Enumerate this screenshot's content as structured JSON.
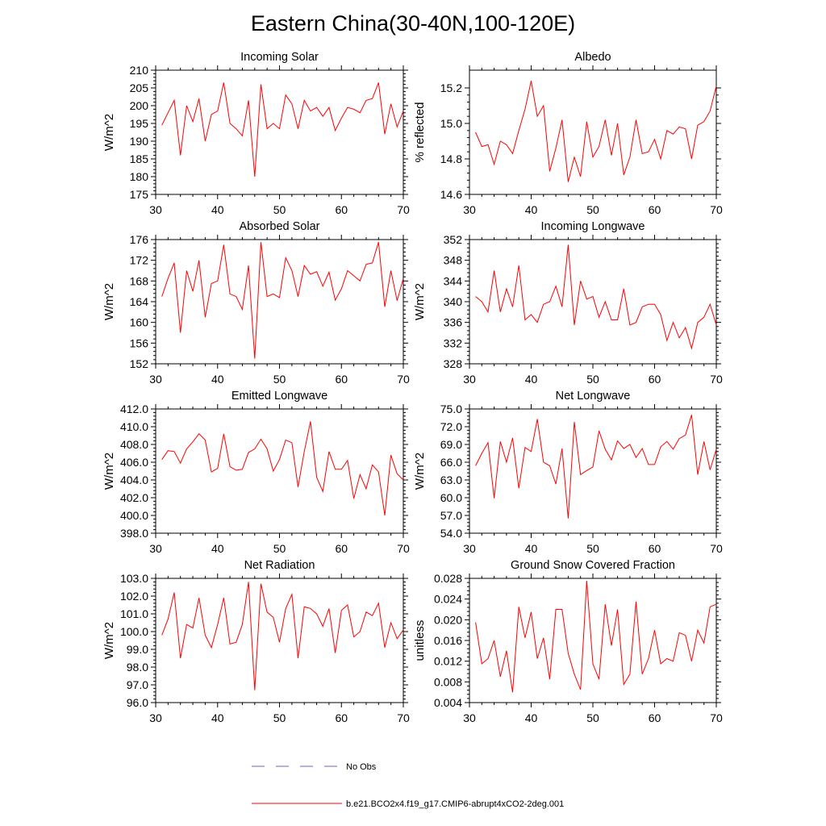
{
  "title": "Eastern China(30-40N,100-120E)",
  "colors": {
    "model": "#ff0000",
    "obs": "#6666cc"
  },
  "legend": {
    "obs_label": "No Obs",
    "model_label": "b.e21.BCO2x4.f19_g17.CMIP6-abrupt4xCO2-2deg.001"
  },
  "chart_data": [
    {
      "type": "line",
      "title": "Incoming Solar",
      "ylabel": "W/m^2",
      "xlim": [
        30,
        70
      ],
      "ylim": [
        175,
        210
      ],
      "xticks": [
        30,
        40,
        50,
        60,
        70
      ],
      "xtick_labels": [
        "30",
        "40",
        "50",
        "60",
        "70"
      ],
      "yticks": [
        175,
        180,
        185,
        190,
        195,
        200,
        205,
        210
      ],
      "ytick_labels": [
        "175",
        "180",
        "185",
        "190",
        "195",
        "200",
        "205",
        "210"
      ],
      "x": [
        31,
        32,
        33,
        34,
        35,
        36,
        37,
        38,
        39,
        40,
        41,
        42,
        43,
        44,
        45,
        46,
        47,
        48,
        49,
        50,
        51,
        52,
        53,
        54,
        55,
        56,
        57,
        58,
        59,
        60,
        61,
        62,
        63,
        64,
        65,
        66,
        67,
        68,
        69,
        70
      ],
      "series": [
        {
          "name": "b.e21.BCO2x4.f19_g17.CMIP6-abrupt4xCO2-2deg.001",
          "values": [
            194.5,
            198.0,
            201.5,
            186.0,
            200.0,
            195.5,
            202.0,
            190.0,
            197.5,
            198.5,
            206.5,
            195.0,
            193.5,
            191.5,
            201.5,
            180.0,
            206.0,
            193.5,
            195.0,
            193.5,
            203.0,
            200.5,
            193.5,
            201.5,
            198.5,
            199.5,
            197.0,
            199.5,
            193.0,
            196.5,
            199.5,
            199.0,
            198.0,
            201.5,
            202.0,
            206.5,
            192.0,
            200.5,
            194.0,
            198.5
          ]
        }
      ]
    },
    {
      "type": "line",
      "title": "Albedo",
      "ylabel": "% reflected",
      "xlim": [
        30,
        70
      ],
      "ylim": [
        14.6,
        15.3
      ],
      "xticks": [
        30,
        40,
        50,
        60,
        70
      ],
      "xtick_labels": [
        "30",
        "40",
        "50",
        "60",
        "70"
      ],
      "yticks": [
        14.6,
        14.8,
        15.0,
        15.2
      ],
      "ytick_labels": [
        "14.6",
        "14.8",
        "15.0",
        "15.2"
      ],
      "x": [
        31,
        32,
        33,
        34,
        35,
        36,
        37,
        38,
        39,
        40,
        41,
        42,
        43,
        44,
        45,
        46,
        47,
        48,
        49,
        50,
        51,
        52,
        53,
        54,
        55,
        56,
        57,
        58,
        59,
        60,
        61,
        62,
        63,
        64,
        65,
        66,
        67,
        68,
        69,
        70
      ],
      "series": [
        {
          "name": "b.e21.BCO2x4.f19_g17.CMIP6-abrupt4xCO2-2deg.001",
          "values": [
            14.95,
            14.87,
            14.88,
            14.77,
            14.9,
            14.88,
            14.83,
            14.96,
            15.08,
            15.24,
            15.04,
            15.1,
            14.73,
            14.86,
            15.02,
            14.67,
            14.81,
            14.7,
            15.01,
            14.81,
            14.87,
            15.02,
            14.82,
            15.0,
            14.71,
            14.81,
            15.02,
            14.83,
            14.84,
            14.91,
            14.8,
            14.96,
            14.94,
            14.98,
            14.97,
            14.8,
            14.99,
            15.01,
            15.07,
            15.21
          ]
        }
      ]
    },
    {
      "type": "line",
      "title": "Absorbed Solar",
      "ylabel": "W/m^2",
      "xlim": [
        30,
        70
      ],
      "ylim": [
        152,
        176
      ],
      "xticks": [
        30,
        40,
        50,
        60,
        70
      ],
      "xtick_labels": [
        "30",
        "40",
        "50",
        "60",
        "70"
      ],
      "yticks": [
        152,
        156,
        160,
        164,
        168,
        172,
        176
      ],
      "ytick_labels": [
        "152",
        "156",
        "160",
        "164",
        "168",
        "172",
        "176"
      ],
      "x": [
        31,
        32,
        33,
        34,
        35,
        36,
        37,
        38,
        39,
        40,
        41,
        42,
        43,
        44,
        45,
        46,
        47,
        48,
        49,
        50,
        51,
        52,
        53,
        54,
        55,
        56,
        57,
        58,
        59,
        60,
        61,
        62,
        63,
        64,
        65,
        66,
        67,
        68,
        69,
        70
      ],
      "series": [
        {
          "name": "b.e21.BCO2x4.f19_g17.CMIP6-abrupt4xCO2-2deg.001",
          "values": [
            165.0,
            168.5,
            171.5,
            158.0,
            170.0,
            166.0,
            172.0,
            161.0,
            167.5,
            168.0,
            175.0,
            165.5,
            165.0,
            162.5,
            171.0,
            153.0,
            175.5,
            165.0,
            165.5,
            164.8,
            172.5,
            170.0,
            165.0,
            171.0,
            169.3,
            169.8,
            167.0,
            169.7,
            164.3,
            166.5,
            170.0,
            169.0,
            168.0,
            171.2,
            171.5,
            175.5,
            163.0,
            170.0,
            164.2,
            168.5
          ]
        }
      ]
    },
    {
      "type": "line",
      "title": "Incoming Longwave",
      "ylabel": "W/m^2",
      "xlim": [
        30,
        70
      ],
      "ylim": [
        328,
        352
      ],
      "xticks": [
        30,
        40,
        50,
        60,
        70
      ],
      "xtick_labels": [
        "30",
        "40",
        "50",
        "60",
        "70"
      ],
      "yticks": [
        328,
        332,
        336,
        340,
        344,
        348,
        352
      ],
      "ytick_labels": [
        "328",
        "332",
        "336",
        "340",
        "344",
        "348",
        "352"
      ],
      "x": [
        31,
        32,
        33,
        34,
        35,
        36,
        37,
        38,
        39,
        40,
        41,
        42,
        43,
        44,
        45,
        46,
        47,
        48,
        49,
        50,
        51,
        52,
        53,
        54,
        55,
        56,
        57,
        58,
        59,
        60,
        61,
        62,
        63,
        64,
        65,
        66,
        67,
        68,
        69,
        70
      ],
      "series": [
        {
          "name": "b.e21.BCO2x4.f19_g17.CMIP6-abrupt4xCO2-2deg.001",
          "values": [
            341.0,
            340.0,
            338.0,
            346.0,
            338.0,
            342.5,
            339.0,
            347.0,
            336.5,
            337.5,
            336.0,
            339.5,
            340.0,
            343.0,
            339.0,
            351.0,
            335.5,
            344.0,
            340.5,
            341.0,
            337.0,
            340.0,
            336.5,
            336.5,
            342.5,
            335.5,
            336.0,
            339.0,
            339.5,
            339.5,
            337.5,
            332.5,
            336.0,
            333.0,
            335.0,
            331.0,
            336.0,
            337.0,
            339.5,
            335.5
          ]
        }
      ]
    },
    {
      "type": "line",
      "title": "Emitted Longwave",
      "ylabel": "W/m^2",
      "xlim": [
        30,
        70
      ],
      "ylim": [
        398,
        412
      ],
      "xticks": [
        30,
        40,
        50,
        60,
        70
      ],
      "xtick_labels": [
        "30",
        "40",
        "50",
        "60",
        "70"
      ],
      "yticks": [
        398,
        400,
        402,
        404,
        406,
        408,
        410,
        412
      ],
      "ytick_labels": [
        "398.0",
        "400.0",
        "402.0",
        "404.0",
        "406.0",
        "408.0",
        "410.0",
        "412.0"
      ],
      "x": [
        31,
        32,
        33,
        34,
        35,
        36,
        37,
        38,
        39,
        40,
        41,
        42,
        43,
        44,
        45,
        46,
        47,
        48,
        49,
        50,
        51,
        52,
        53,
        54,
        55,
        56,
        57,
        58,
        59,
        60,
        61,
        62,
        63,
        64,
        65,
        66,
        67,
        68,
        69,
        70
      ],
      "series": [
        {
          "name": "b.e21.BCO2x4.f19_g17.CMIP6-abrupt4xCO2-2deg.001",
          "values": [
            406.3,
            407.3,
            407.2,
            405.9,
            407.5,
            408.3,
            409.2,
            408.5,
            404.9,
            405.3,
            409.2,
            405.5,
            405.1,
            405.2,
            407.1,
            407.5,
            408.6,
            407.5,
            405.0,
            406.3,
            408.5,
            408.2,
            403.2,
            407.2,
            410.6,
            404.3,
            402.7,
            407.2,
            405.2,
            405.2,
            406.2,
            401.9,
            404.6,
            403.0,
            405.7,
            404.9,
            400.0,
            406.8,
            404.7,
            404.0
          ]
        }
      ]
    },
    {
      "type": "line",
      "title": "Net Longwave",
      "ylabel": "W/m^2",
      "xlim": [
        30,
        70
      ],
      "ylim": [
        54,
        75
      ],
      "xticks": [
        30,
        40,
        50,
        60,
        70
      ],
      "xtick_labels": [
        "30",
        "40",
        "50",
        "60",
        "70"
      ],
      "yticks": [
        54,
        57,
        60,
        63,
        66,
        69,
        72,
        75
      ],
      "ytick_labels": [
        "54.0",
        "57.0",
        "60.0",
        "63.0",
        "66.0",
        "69.0",
        "72.0",
        "75.0"
      ],
      "x": [
        31,
        32,
        33,
        34,
        35,
        36,
        37,
        38,
        39,
        40,
        41,
        42,
        43,
        44,
        45,
        46,
        47,
        48,
        49,
        50,
        51,
        52,
        53,
        54,
        55,
        56,
        57,
        58,
        59,
        60,
        61,
        62,
        63,
        64,
        65,
        66,
        67,
        68,
        69,
        70
      ],
      "series": [
        {
          "name": "b.e21.BCO2x4.f19_g17.CMIP6-abrupt4xCO2-2deg.001",
          "values": [
            65.4,
            67.5,
            69.3,
            59.9,
            69.5,
            66.0,
            70.1,
            61.6,
            68.5,
            67.8,
            73.3,
            66.0,
            65.4,
            62.3,
            68.3,
            56.5,
            72.8,
            63.9,
            64.6,
            65.2,
            71.3,
            68.2,
            66.4,
            69.6,
            68.3,
            69.0,
            66.8,
            68.3,
            65.6,
            65.6,
            68.6,
            69.5,
            68.2,
            70.0,
            70.6,
            74.0,
            63.9,
            69.5,
            64.7,
            68.2
          ]
        }
      ]
    },
    {
      "type": "line",
      "title": "Net Radiation",
      "ylabel": "W/m^2",
      "xlim": [
        30,
        70
      ],
      "ylim": [
        96,
        103
      ],
      "xticks": [
        30,
        40,
        50,
        60,
        70
      ],
      "xtick_labels": [
        "30",
        "40",
        "50",
        "60",
        "70"
      ],
      "yticks": [
        96,
        97,
        98,
        99,
        100,
        101,
        102,
        103
      ],
      "ytick_labels": [
        "96.0",
        "97.0",
        "98.0",
        "99.0",
        "100.0",
        "101.0",
        "102.0",
        "103.0"
      ],
      "x": [
        31,
        32,
        33,
        34,
        35,
        36,
        37,
        38,
        39,
        40,
        41,
        42,
        43,
        44,
        45,
        46,
        47,
        48,
        49,
        50,
        51,
        52,
        53,
        54,
        55,
        56,
        57,
        58,
        59,
        60,
        61,
        62,
        63,
        64,
        65,
        66,
        67,
        68,
        69,
        70
      ],
      "series": [
        {
          "name": "b.e21.BCO2x4.f19_g17.CMIP6-abrupt4xCO2-2deg.001",
          "values": [
            99.8,
            100.7,
            102.2,
            98.5,
            100.4,
            100.2,
            101.9,
            99.8,
            99.1,
            100.4,
            101.9,
            99.3,
            99.4,
            100.4,
            102.8,
            96.7,
            102.7,
            101.1,
            100.8,
            99.4,
            101.3,
            102.1,
            98.5,
            101.4,
            101.3,
            101.0,
            100.3,
            101.3,
            98.8,
            101.2,
            101.5,
            99.7,
            100.0,
            101.1,
            100.9,
            101.6,
            99.1,
            100.5,
            99.6,
            100.1
          ]
        }
      ]
    },
    {
      "type": "line",
      "title": "Ground Snow Covered Fraction",
      "ylabel": "unitless",
      "xlim": [
        30,
        70
      ],
      "ylim": [
        0.004,
        0.028
      ],
      "xticks": [
        30,
        40,
        50,
        60,
        70
      ],
      "xtick_labels": [
        "30",
        "40",
        "50",
        "60",
        "70"
      ],
      "yticks": [
        0.004,
        0.008,
        0.012,
        0.016,
        0.02,
        0.024,
        0.028
      ],
      "ytick_labels": [
        "0.004",
        "0.008",
        "0.012",
        "0.016",
        "0.020",
        "0.024",
        "0.028"
      ],
      "x": [
        31,
        32,
        33,
        34,
        35,
        36,
        37,
        38,
        39,
        40,
        41,
        42,
        43,
        44,
        45,
        46,
        47,
        48,
        49,
        50,
        51,
        52,
        53,
        54,
        55,
        56,
        57,
        58,
        59,
        60,
        61,
        62,
        63,
        64,
        65,
        66,
        67,
        68,
        69,
        70
      ],
      "series": [
        {
          "name": "b.e21.BCO2x4.f19_g17.CMIP6-abrupt4xCO2-2deg.001",
          "values": [
            0.0195,
            0.0115,
            0.0125,
            0.016,
            0.009,
            0.014,
            0.006,
            0.0225,
            0.0165,
            0.0215,
            0.0125,
            0.0165,
            0.0085,
            0.022,
            0.022,
            0.0135,
            0.0095,
            0.0065,
            0.0275,
            0.0115,
            0.0085,
            0.023,
            0.015,
            0.022,
            0.0075,
            0.0095,
            0.0235,
            0.0095,
            0.0125,
            0.018,
            0.0115,
            0.0125,
            0.012,
            0.0175,
            0.017,
            0.012,
            0.018,
            0.0155,
            0.0225,
            0.023
          ]
        }
      ]
    }
  ]
}
